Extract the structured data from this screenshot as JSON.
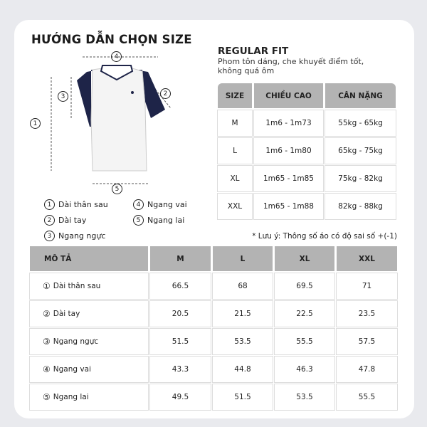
{
  "title": "HƯỚNG DẪN CHỌN SIZE",
  "fit": {
    "name": "REGULAR FIT",
    "description": "Phom tôn dáng, che khuyết điểm tốt, không quá ôm"
  },
  "size_table": {
    "headers": [
      "SIZE",
      "CHIỀU CAO",
      "CÂN NẶNG"
    ],
    "rows": [
      [
        "M",
        "1m6 - 1m73",
        "55kg - 65kg"
      ],
      [
        "L",
        "1m6 - 1m80",
        "65kg - 75kg"
      ],
      [
        "XL",
        "1m65 - 1m85",
        "75kg - 82kg"
      ],
      [
        "XXL",
        "1m65 - 1m88",
        "82kg - 88kg"
      ]
    ]
  },
  "note": "* Lưu ý: Thông số áo có độ sai số  +(-1)",
  "legend": [
    {
      "n": "1",
      "label": "Dài thân sau"
    },
    {
      "n": "2",
      "label": "Dài tay"
    },
    {
      "n": "3",
      "label": "Ngang ngực"
    },
    {
      "n": "4",
      "label": "Ngang vai"
    },
    {
      "n": "5",
      "label": "Ngang lai"
    }
  ],
  "measure_table": {
    "headers": [
      "MÔ TẢ",
      "M",
      "L",
      "XL",
      "XXL"
    ],
    "rows": [
      {
        "n": "①",
        "label": "Dài thân sau",
        "values": [
          "66.5",
          "68",
          "69.5",
          "71"
        ]
      },
      {
        "n": "②",
        "label": "Dài tay",
        "values": [
          "20.5",
          "21.5",
          "22.5",
          "23.5"
        ]
      },
      {
        "n": "③",
        "label": "Ngang ngực",
        "values": [
          "51.5",
          "53.5",
          "55.5",
          "57.5"
        ]
      },
      {
        "n": "④",
        "label": "Ngang vai",
        "values": [
          "43.3",
          "44.8",
          "46.3",
          "47.8"
        ]
      },
      {
        "n": "⑤",
        "label": "Ngang lai",
        "values": [
          "49.5",
          "51.5",
          "53.5",
          "55.5"
        ]
      }
    ]
  },
  "colors": {
    "sleeve": "#1e2448",
    "header": "#b3b3b3"
  }
}
